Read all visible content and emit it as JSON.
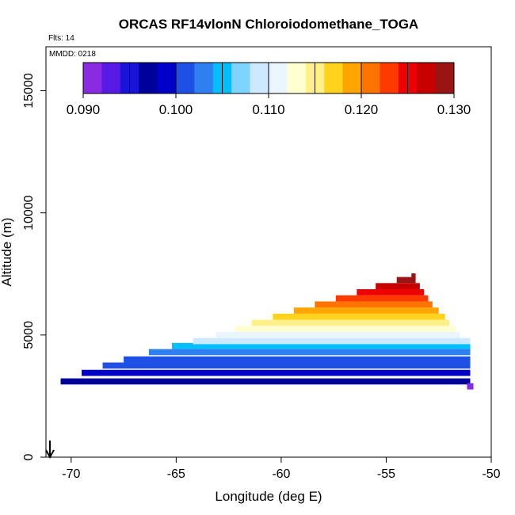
{
  "chart_data": {
    "type": "heatmap",
    "title": "ORCAS RF14vlonN Chloroiodomethane_TOGA",
    "subtitle_flights": "Flts: 14",
    "subtitle_date": "MMDD: 0218",
    "xlabel": "Longitude (deg E)",
    "ylabel": "Altitude (m)",
    "xlim": [
      -71.2,
      -50
    ],
    "ylim": [
      0,
      16800
    ],
    "x_ticks": [
      -70,
      -65,
      -60,
      -55,
      -50
    ],
    "x_tick_labels": [
      "-70",
      "-65",
      "-60",
      "-55",
      "-50"
    ],
    "y_ticks": [
      0,
      5000,
      10000,
      15000
    ],
    "y_tick_labels": [
      "0",
      "5000",
      "10000",
      "15000"
    ],
    "colorbar": {
      "ticks": [
        0.09,
        0.1,
        0.11,
        0.12,
        0.13
      ],
      "tick_labels": [
        "0.090",
        "0.100",
        "0.110",
        "0.120",
        "0.130"
      ],
      "range": [
        0.09,
        0.13
      ],
      "colors": [
        "#8a2be2",
        "#5a1ae6",
        "#1a14d8",
        "#00009a",
        "#0000c8",
        "#1e50e6",
        "#2f7ff0",
        "#00bfff",
        "#7fd3ff",
        "#cde9ff",
        "#eaf6ff",
        "#ffffd2",
        "#fff08a",
        "#ffd21e",
        "#ffa500",
        "#ff7400",
        "#ff3a00",
        "#ee0000",
        "#c80000",
        "#9a1414"
      ]
    },
    "cells": [
      {
        "x0": -70.5,
        "x1": -51,
        "y": 3100,
        "v": 0.097
      },
      {
        "x0": -69.5,
        "x1": -51,
        "y": 3450,
        "v": 0.099
      },
      {
        "x0": -68.5,
        "x1": -51,
        "y": 3750,
        "v": 0.1
      },
      {
        "x0": -67.5,
        "x1": -51,
        "y": 4000,
        "v": 0.102
      },
      {
        "x0": -66.3,
        "x1": -51,
        "y": 4300,
        "v": 0.103
      },
      {
        "x0": -65.2,
        "x1": -51,
        "y": 4550,
        "v": 0.106
      },
      {
        "x0": -64.2,
        "x1": -51,
        "y": 4750,
        "v": 0.108
      },
      {
        "x0": -63.1,
        "x1": -51.5,
        "y": 5000,
        "v": 0.111
      },
      {
        "x0": -62.2,
        "x1": -51.7,
        "y": 5250,
        "v": 0.113
      },
      {
        "x0": -61.4,
        "x1": -52,
        "y": 5500,
        "v": 0.115
      },
      {
        "x0": -60.4,
        "x1": -52.2,
        "y": 5750,
        "v": 0.117
      },
      {
        "x0": -59.4,
        "x1": -52.5,
        "y": 6000,
        "v": 0.119
      },
      {
        "x0": -58.4,
        "x1": -52.8,
        "y": 6250,
        "v": 0.121
      },
      {
        "x0": -57.4,
        "x1": -53,
        "y": 6500,
        "v": 0.123
      },
      {
        "x0": -56.4,
        "x1": -53.2,
        "y": 6750,
        "v": 0.125
      },
      {
        "x0": -55.5,
        "x1": -53.4,
        "y": 7000,
        "v": 0.126
      },
      {
        "x0": -54.5,
        "x1": -53.6,
        "y": 7250,
        "v": 0.128
      },
      {
        "x0": -53.8,
        "x1": -53.6,
        "y": 7400,
        "v": 0.13
      }
    ],
    "marker": {
      "x": -51,
      "y": 2900,
      "v": 0.09
    }
  }
}
